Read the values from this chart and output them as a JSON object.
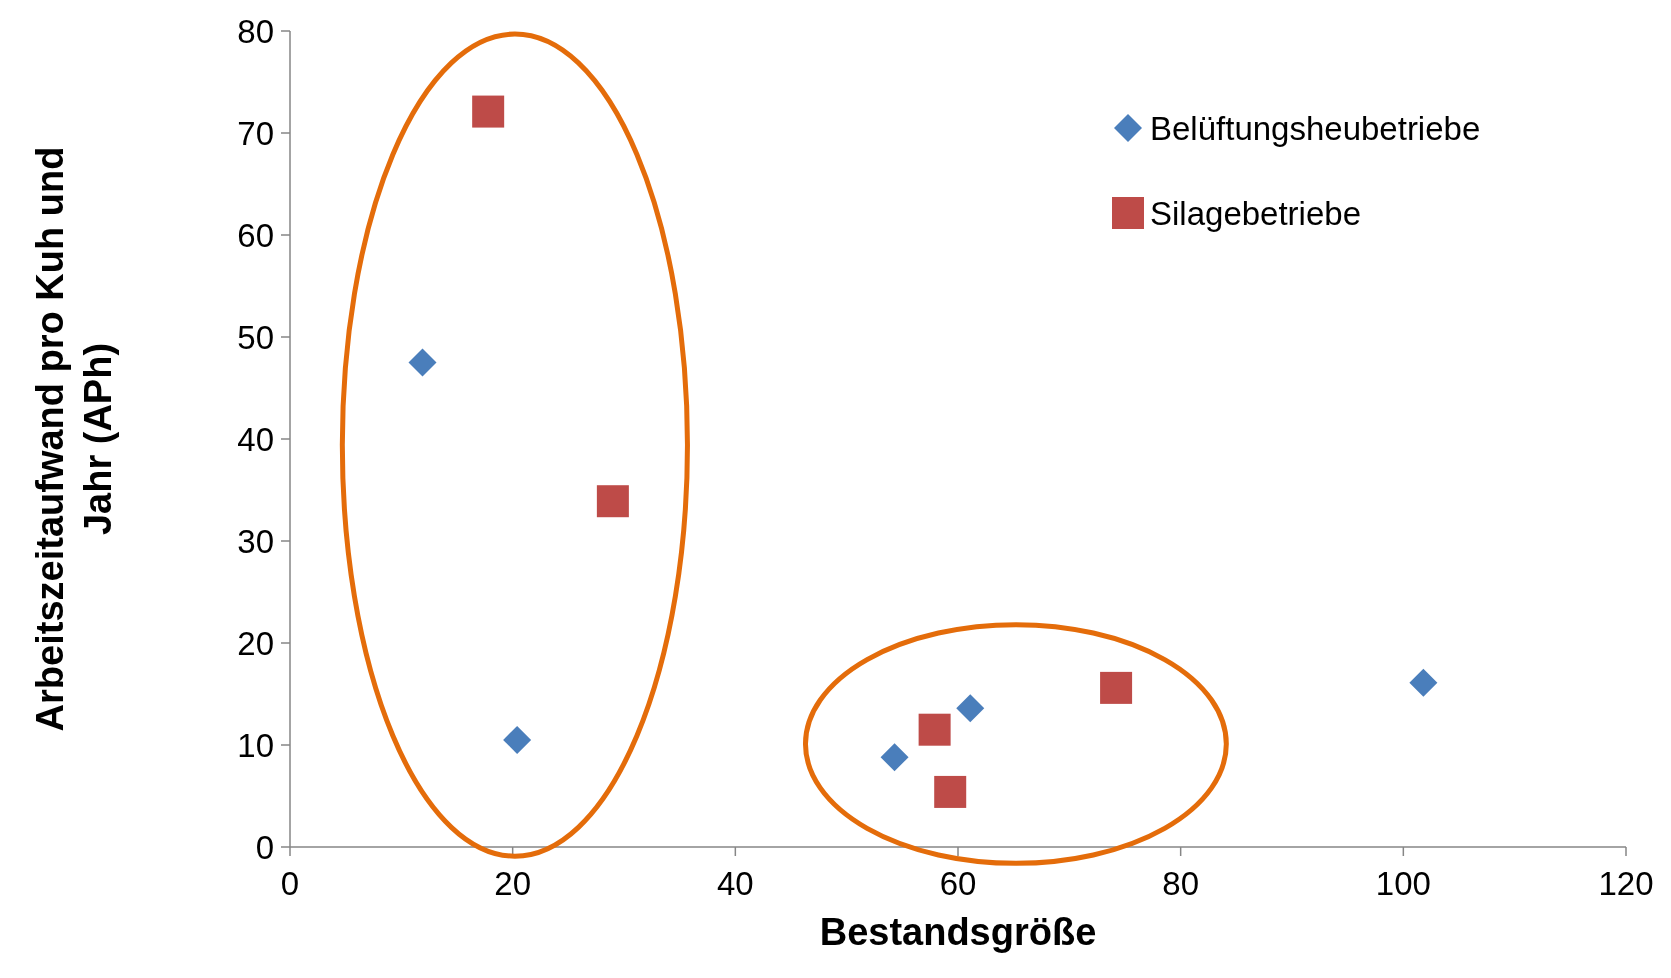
{
  "chart_data": {
    "type": "scatter",
    "xlabel": "Bestandsgröße",
    "ylabel": "Arbeitszeitaufwand pro Kuh und Jahr (APh)",
    "xlim": [
      0,
      120
    ],
    "xticks": [
      0,
      20,
      40,
      60,
      80,
      100,
      120
    ],
    "ylim": [
      0,
      80
    ],
    "yticks": [
      0,
      10,
      20,
      30,
      40,
      50,
      60,
      70,
      80
    ],
    "grid": false,
    "legend": "top right",
    "series": [
      {
        "name": "Belüftungsheubetriebe",
        "color": "#4a7ebb",
        "marker": "diamond",
        "x": [
          11.9,
          20.4,
          54.3,
          61.1,
          101.8
        ],
        "values": [
          47.5,
          10.5,
          8.8,
          13.6,
          16.1
        ]
      },
      {
        "name": "Silagebetriebe",
        "color": "#be4b48",
        "marker": "square",
        "x": [
          17.8,
          29.0,
          57.9,
          59.3,
          74.2
        ],
        "values": [
          72.1,
          33.9,
          11.5,
          5.4,
          15.6
        ]
      }
    ]
  }
}
